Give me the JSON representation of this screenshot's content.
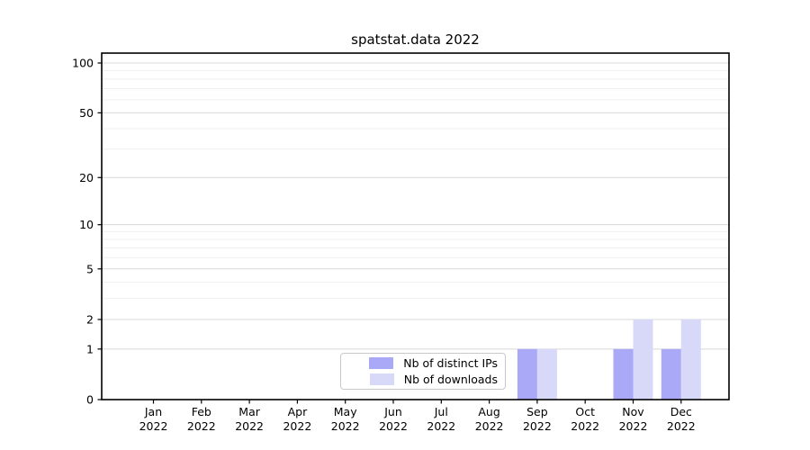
{
  "chart_data": {
    "type": "bar",
    "title": "spatstat.data 2022",
    "categories": [
      "Jan 2022",
      "Feb 2022",
      "Mar 2022",
      "Apr 2022",
      "May 2022",
      "Jun 2022",
      "Jul 2022",
      "Aug 2022",
      "Sep 2022",
      "Oct 2022",
      "Nov 2022",
      "Dec 2022"
    ],
    "series": [
      {
        "name": "Nb of distinct IPs",
        "color": "#a9a9f7",
        "values": [
          0,
          0,
          0,
          0,
          0,
          0,
          0,
          0,
          1,
          0,
          1,
          1
        ]
      },
      {
        "name": "Nb of downloads",
        "color": "#d8d8f9",
        "values": [
          0,
          0,
          0,
          0,
          0,
          0,
          0,
          0,
          1,
          0,
          2,
          2
        ]
      }
    ],
    "xlabel": "",
    "ylabel": "",
    "yscale": "log1p",
    "ylim": [
      0,
      116
    ],
    "yticks_major": [
      0,
      1,
      2,
      5,
      10,
      20,
      50,
      100
    ],
    "yticks_minor": [
      3,
      4,
      6,
      7,
      8,
      9,
      30,
      40,
      60,
      70,
      80,
      90
    ],
    "grid": "horizontal",
    "legend_position": "lower center",
    "colors": {
      "axis": "#000000",
      "grid_major": "#d8d8d8",
      "grid_minor": "#efefef",
      "text": "#000000"
    }
  }
}
